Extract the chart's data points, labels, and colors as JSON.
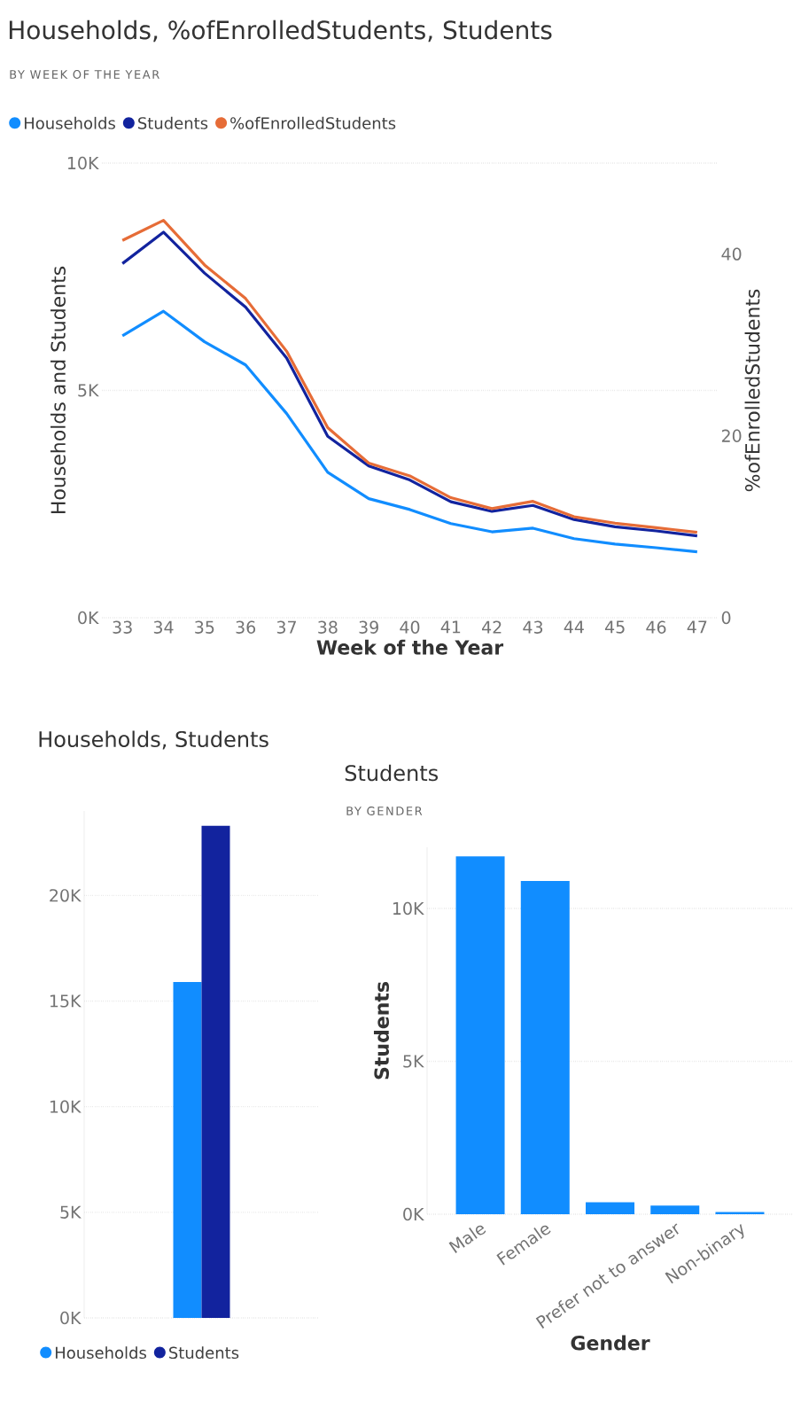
{
  "chart_data": [
    {
      "type": "line",
      "title": "Households, %ofEnrolledStudents, Students",
      "subtitle": "BY WEEK OF THE YEAR",
      "xlabel": "Week of the Year",
      "ylabel": "Households and Students",
      "y2label": "%ofEnrolledStudents",
      "x": [
        33,
        34,
        35,
        36,
        37,
        38,
        39,
        40,
        41,
        42,
        43,
        44,
        45,
        46,
        47
      ],
      "xlim": [
        32.5,
        47.5
      ],
      "xticks": [
        33,
        34,
        35,
        36,
        37,
        38,
        39,
        40,
        41,
        42,
        43,
        44,
        45,
        46,
        47
      ],
      "ylim": [
        0,
        10000
      ],
      "yticks": [
        {
          "value": 0,
          "label": "0K"
        },
        {
          "value": 5000,
          "label": "5K"
        },
        {
          "value": 10000,
          "label": "10K"
        }
      ],
      "y2lim": [
        0,
        50
      ],
      "y2ticks": [
        0,
        20,
        40
      ],
      "grid": "y",
      "legend": "top left",
      "series": [
        {
          "name": "Households",
          "color": "#118dff",
          "values": [
            6200,
            6740,
            6070,
            5560,
            4490,
            3200,
            2620,
            2380,
            2070,
            1890,
            1970,
            1740,
            1620,
            1540,
            1450
          ]
        },
        {
          "name": "Students",
          "color": "#12239e",
          "values": [
            7790,
            8480,
            7580,
            6830,
            5710,
            3990,
            3340,
            3030,
            2550,
            2340,
            2470,
            2160,
            2000,
            1910,
            1800
          ]
        },
        {
          "name": "%ofEnrolledStudents",
          "color": "#e66c37",
          "axis": "y2",
          "values": [
            41.5,
            43.7,
            38.8,
            35.1,
            29.3,
            20.9,
            17.0,
            15.6,
            13.2,
            12.0,
            12.8,
            11.1,
            10.4,
            9.9,
            9.4
          ]
        }
      ]
    },
    {
      "type": "bar",
      "title": "Households, Students",
      "categories": [
        null
      ],
      "ylim": [
        0,
        24000
      ],
      "yticks": [
        {
          "value": 0,
          "label": "0K"
        },
        {
          "value": 5000,
          "label": "5K"
        },
        {
          "value": 10000,
          "label": "10K"
        },
        {
          "value": 15000,
          "label": "15K"
        },
        {
          "value": 20000,
          "label": "20K"
        }
      ],
      "grid": "y",
      "legend": "bottom left",
      "tick_labels": "y",
      "series": [
        {
          "name": "Households",
          "color": "#118dff",
          "values": [
            15900
          ]
        },
        {
          "name": "Students",
          "color": "#12239e",
          "values": [
            23300
          ]
        }
      ]
    },
    {
      "type": "bar",
      "title": "Students",
      "subtitle": "BY GENDER",
      "xlabel": "Gender",
      "ylabel": "Students",
      "categories": [
        "Male",
        "Female",
        null,
        "Prefer not to answer",
        "Non-binary"
      ],
      "values": [
        11700,
        10900,
        390,
        280,
        70
      ],
      "color": "#118dff",
      "ylim": [
        0,
        12000
      ],
      "yticks": [
        {
          "value": 0,
          "label": "0K"
        },
        {
          "value": 5000,
          "label": "5K"
        },
        {
          "value": 10000,
          "label": "10K"
        }
      ],
      "grid": "y"
    }
  ]
}
